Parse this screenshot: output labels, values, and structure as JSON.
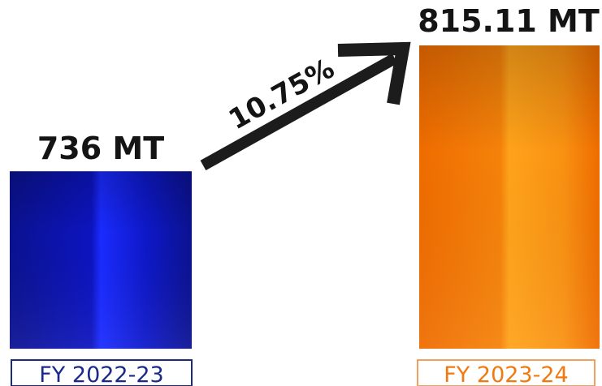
{
  "chart_data": {
    "type": "bar",
    "title": "",
    "xlabel": "",
    "ylabel": "",
    "categories": [
      "FY 2022-23",
      "FY 2023-24"
    ],
    "values": [
      736,
      815.11
    ],
    "value_labels": [
      "736 MT",
      "815.11 MT"
    ],
    "growth_label": "10.75%",
    "grid": false,
    "colors": {
      "bar_1": "#0a0fd6",
      "bar_1_dark": "#0b1290",
      "bar_1_light": "#1a2bff",
      "bar_2": "#ff9a0a",
      "bar_2_dark": "#ef6c00",
      "bar_2_light": "#ffa31a",
      "arrow": "#1c1c1c",
      "label_1_border": "#1b2a7a",
      "label_2_border": "#f0a060",
      "label_1_text": "#1b2a8a",
      "label_2_text": "#f07a10"
    }
  }
}
